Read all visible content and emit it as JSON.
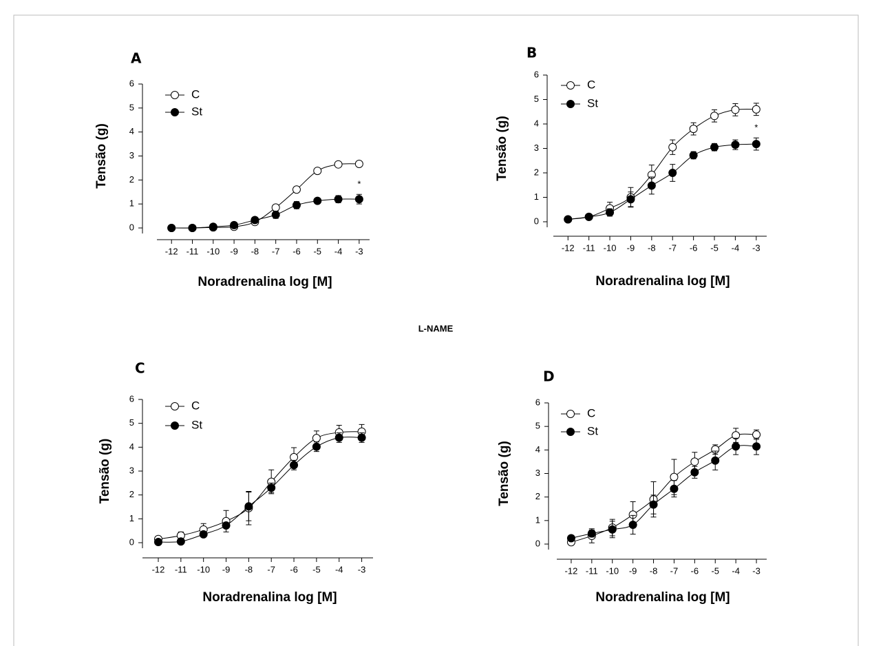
{
  "section_label": "L-NAME",
  "chart_data": [
    {
      "type": "line",
      "panel": "A",
      "xlabel": "Noradrenalina log [M]",
      "ylabel": "Tensão (g)",
      "x": [
        -12,
        -11,
        -10,
        -9,
        -8,
        -7,
        -6,
        -5,
        -4,
        -3
      ],
      "xlim": [
        -12.7,
        -2.5
      ],
      "xticks": [
        -12,
        -11,
        -10,
        -9,
        -8,
        -7,
        -6,
        -5,
        -4,
        -3
      ],
      "ylim": [
        0,
        6
      ],
      "yticks": [
        0,
        1,
        2,
        3,
        4,
        5,
        6
      ],
      "annotation": "*",
      "series": [
        {
          "name": "C",
          "color": "#000000",
          "filled": false,
          "values": [
            0,
            0,
            0.02,
            0.05,
            0.25,
            0.85,
            1.6,
            2.38,
            2.65,
            2.67
          ],
          "errors": [
            0.03,
            0.03,
            0.03,
            0.05,
            0.05,
            0.1,
            0.08,
            0.08,
            0.08,
            0.08
          ]
        },
        {
          "name": "St",
          "color": "#000000",
          "filled": true,
          "values": [
            0,
            0,
            0.05,
            0.12,
            0.33,
            0.55,
            0.95,
            1.13,
            1.2,
            1.2
          ],
          "errors": [
            0.03,
            0.03,
            0.05,
            0.05,
            0.08,
            0.15,
            0.15,
            0.1,
            0.15,
            0.2
          ]
        }
      ]
    },
    {
      "type": "line",
      "panel": "B",
      "xlabel": "Noradrenalina log [M]",
      "ylabel": "Tensão (g)",
      "x": [
        -12,
        -11,
        -10,
        -9,
        -8,
        -7,
        -6,
        -5,
        -4,
        -3
      ],
      "xlim": [
        -12.7,
        -2.5
      ],
      "xticks": [
        -12,
        -11,
        -10,
        -9,
        -8,
        -7,
        -6,
        -5,
        -4,
        -3
      ],
      "ylim": [
        0,
        6
      ],
      "yticks": [
        0,
        1,
        2,
        3,
        4,
        5,
        6
      ],
      "annotation": "*",
      "series": [
        {
          "name": "C",
          "color": "#000000",
          "filled": false,
          "values": [
            0.1,
            0.2,
            0.55,
            1.0,
            1.92,
            3.05,
            3.8,
            4.33,
            4.58,
            4.6
          ],
          "errors": [
            0.05,
            0.1,
            0.25,
            0.4,
            0.4,
            0.3,
            0.25,
            0.25,
            0.25,
            0.25
          ]
        },
        {
          "name": "St",
          "color": "#000000",
          "filled": true,
          "values": [
            0.1,
            0.2,
            0.38,
            0.92,
            1.48,
            2.0,
            2.72,
            3.05,
            3.15,
            3.18
          ],
          "errors": [
            0.05,
            0.05,
            0.15,
            0.3,
            0.35,
            0.35,
            0.15,
            0.15,
            0.2,
            0.25
          ]
        }
      ]
    },
    {
      "type": "line",
      "panel": "C",
      "xlabel": "Noradrenalina log [M]",
      "ylabel": "Tensão (g)",
      "x": [
        -12,
        -11,
        -10,
        -9,
        -8,
        -7,
        -6,
        -5,
        -4,
        -3
      ],
      "xlim": [
        -12.7,
        -2.5
      ],
      "xticks": [
        -12,
        -11,
        -10,
        -9,
        -8,
        -7,
        -6,
        -5,
        -4,
        -3
      ],
      "ylim": [
        0,
        6
      ],
      "yticks": [
        0,
        1,
        2,
        3,
        4,
        5,
        6
      ],
      "series": [
        {
          "name": "C",
          "color": "#000000",
          "filled": false,
          "values": [
            0.15,
            0.3,
            0.55,
            0.9,
            1.45,
            2.55,
            3.58,
            4.38,
            4.62,
            4.65
          ],
          "errors": [
            0.05,
            0.15,
            0.25,
            0.45,
            0.7,
            0.5,
            0.4,
            0.3,
            0.3,
            0.3
          ]
        },
        {
          "name": "St",
          "color": "#000000",
          "filled": true,
          "values": [
            0.03,
            0.05,
            0.35,
            0.72,
            1.52,
            2.3,
            3.25,
            4.02,
            4.4,
            4.4
          ],
          "errors": [
            0.03,
            0.03,
            0.1,
            0.1,
            0.6,
            0.2,
            0.2,
            0.2,
            0.2,
            0.2
          ]
        }
      ]
    },
    {
      "type": "line",
      "panel": "D",
      "xlabel": "Noradrenalina log [M]",
      "ylabel": "Tensão (g)",
      "x": [
        -12,
        -11,
        -10,
        -9,
        -8,
        -7,
        -6,
        -5,
        -4,
        -3
      ],
      "xlim": [
        -12.7,
        -2.5
      ],
      "xticks": [
        -12,
        -11,
        -10,
        -9,
        -8,
        -7,
        -6,
        -5,
        -4,
        -3
      ],
      "ylim": [
        0,
        6
      ],
      "yticks": [
        0,
        1,
        2,
        3,
        4,
        5,
        6
      ],
      "series": [
        {
          "name": "C",
          "color": "#000000",
          "filled": false,
          "values": [
            0.08,
            0.35,
            0.7,
            1.25,
            1.9,
            2.85,
            3.5,
            4.02,
            4.62,
            4.65
          ],
          "errors": [
            0.05,
            0.3,
            0.35,
            0.55,
            0.75,
            0.75,
            0.4,
            0.2,
            0.3,
            0.2
          ]
        },
        {
          "name": "St",
          "color": "#000000",
          "filled": true,
          "values": [
            0.25,
            0.45,
            0.62,
            0.82,
            1.68,
            2.35,
            3.05,
            3.55,
            4.15,
            4.15
          ],
          "errors": [
            0.05,
            0.15,
            0.35,
            0.4,
            0.4,
            0.35,
            0.25,
            0.4,
            0.35,
            0.35
          ]
        }
      ]
    }
  ]
}
